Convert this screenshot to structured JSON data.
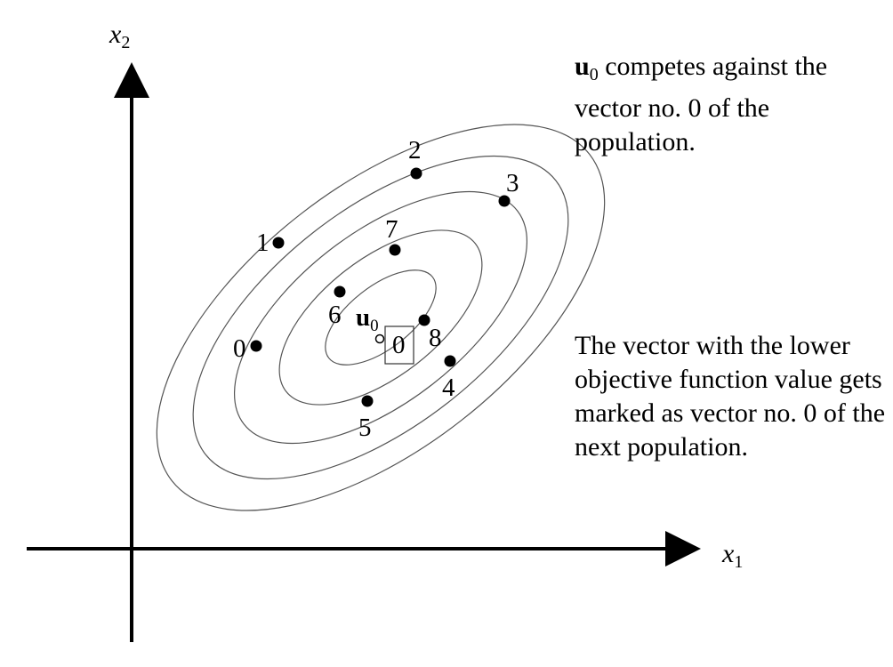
{
  "axes": {
    "x_label": "x",
    "x_subscript": "1",
    "y_label": "x",
    "y_subscript": "2"
  },
  "points": [
    {
      "id": "0",
      "label": "0"
    },
    {
      "id": "1",
      "label": "1"
    },
    {
      "id": "2",
      "label": "2"
    },
    {
      "id": "3",
      "label": "3"
    },
    {
      "id": "4",
      "label": "4"
    },
    {
      "id": "5",
      "label": "5"
    },
    {
      "id": "6",
      "label": "6"
    },
    {
      "id": "7",
      "label": "7"
    },
    {
      "id": "8",
      "label": "8"
    }
  ],
  "trial_vector": {
    "symbol": "u",
    "subscript": "0"
  },
  "target_box_label": "0",
  "annotations": {
    "top": {
      "symbol": "u",
      "subscript": "0",
      "text": " competes against the vector no. 0 of the population."
    },
    "bottom": {
      "text": "The vector with the lower objective function value gets marked as vector no. 0 of the next population."
    }
  }
}
